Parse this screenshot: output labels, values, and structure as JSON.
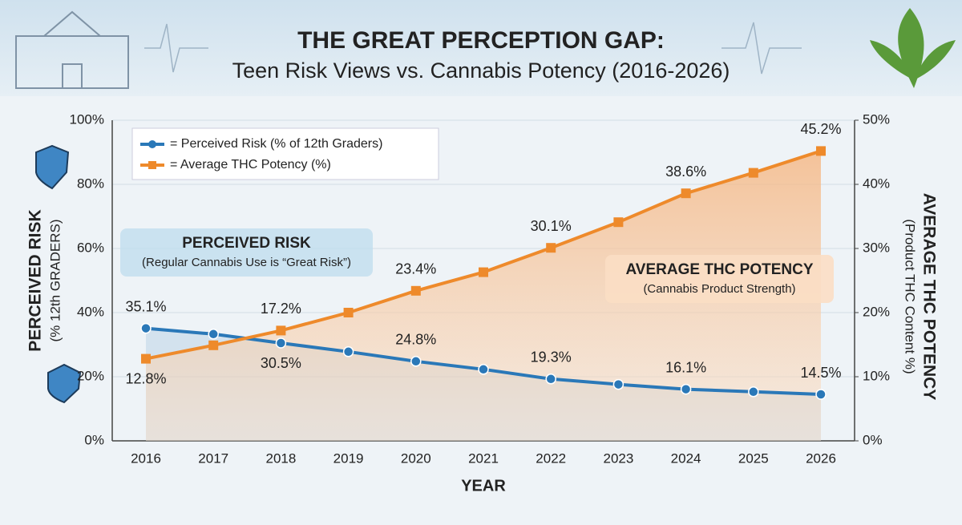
{
  "chart_data": {
    "type": "line",
    "title": "THE GREAT PERCEPTION GAP:",
    "subtitle": "Teen Risk Views vs. Cannabis Potency (2016-2026)",
    "x_label": "YEAR",
    "y_label": "PERCEIVED RISK",
    "y_sublabel": "(% 12th GRADERS)",
    "y2_label": "AVERAGE THC POTENCY",
    "y2_sublabel": "(Product THC Content %)",
    "annotations": [
      {
        "title": "PERCEIVED RISK",
        "text": "(Regular Cannabis Use is “Great Risk”)"
      },
      {
        "title": "AVERAGE THC POTENCY",
        "text": "(Cannabis Product Strength)"
      }
    ],
    "categories": [
      "2016",
      "2017",
      "2018",
      "2019",
      "2020",
      "2021",
      "2022",
      "2023",
      "2024",
      "2025",
      "2026"
    ],
    "series": [
      {
        "name": "= Perceived Risk (% of 12th Graders)",
        "color": "#2a78b8",
        "axis": "y",
        "values": [
          35.1,
          33.3,
          30.5,
          27.8,
          24.8,
          22.3,
          19.3,
          17.6,
          16.1,
          15.3,
          14.5
        ],
        "value_labels": [
          "35.1%",
          null,
          "30.5%",
          null,
          "24.8%",
          null,
          "19.3%",
          null,
          "16.1%",
          null,
          "14.5%"
        ]
      },
      {
        "name": "= Average THC Potency (%)",
        "color": "#ee8a2b",
        "axis": "y2",
        "values": [
          12.8,
          14.9,
          17.2,
          20.0,
          23.4,
          26.3,
          30.1,
          34.1,
          38.6,
          41.8,
          45.2
        ],
        "value_labels": [
          "12.8%",
          null,
          "17.2%",
          null,
          "23.4%",
          null,
          "30.1%",
          null,
          "38.6%",
          null,
          "45.2%"
        ]
      }
    ],
    "ylim": [
      0,
      100
    ],
    "yticks": [
      {
        "value": 0,
        "label": "0%"
      },
      {
        "value": 20,
        "label": "20%"
      },
      {
        "value": 40,
        "label": "40%"
      },
      {
        "value": 60,
        "label": "60%"
      },
      {
        "value": 80,
        "label": "80%"
      },
      {
        "value": 100,
        "label": "100%"
      }
    ],
    "y2lim": [
      0,
      50
    ],
    "y2ticks": [
      {
        "value": 0,
        "label": "0%"
      },
      {
        "value": 10,
        "label": "10%"
      },
      {
        "value": 20,
        "label": "20%"
      },
      {
        "value": 30,
        "label": "30%"
      },
      {
        "value": 40,
        "label": "40%"
      },
      {
        "value": 50,
        "label": "50%"
      }
    ],
    "grid": true,
    "legend": "upper left"
  }
}
